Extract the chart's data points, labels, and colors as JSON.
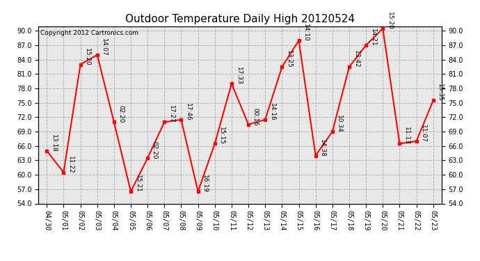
{
  "title": "Outdoor Temperature Daily High 20120524",
  "copyright": "Copyright 2012 Cartronics.com",
  "x_labels": [
    "04/30",
    "05/01",
    "05/02",
    "05/03",
    "05/04",
    "05/05",
    "05/06",
    "05/07",
    "05/08",
    "05/09",
    "05/10",
    "05/11",
    "05/12",
    "05/13",
    "05/14",
    "05/15",
    "05/16",
    "05/17",
    "05/18",
    "05/19",
    "05/20",
    "05/21",
    "05/22",
    "05/23"
  ],
  "y_values": [
    65.0,
    60.5,
    83.0,
    85.0,
    71.0,
    56.5,
    63.5,
    71.0,
    71.5,
    56.5,
    66.5,
    79.0,
    70.5,
    71.5,
    82.5,
    88.0,
    64.0,
    69.0,
    82.5,
    87.0,
    90.5,
    66.5,
    67.0,
    75.5
  ],
  "point_labels": [
    "13:18",
    "11:22",
    "15:20",
    "14:07",
    "02:20",
    "15:21",
    "02:20",
    "17:27",
    "17:46",
    "16:19",
    "15:15",
    "17:33",
    "00:16",
    "14:16",
    "13:25",
    "14:10",
    "14:38",
    "10:34",
    "13:42",
    "14:21",
    "15:20",
    "11:13",
    "11:07",
    "15:35"
  ],
  "ylim": [
    54.0,
    91.0
  ],
  "yticks": [
    54.0,
    57.0,
    60.0,
    63.0,
    66.0,
    69.0,
    72.0,
    75.0,
    78.0,
    81.0,
    84.0,
    87.0,
    90.0
  ],
  "line_color": "red",
  "marker_color": "red",
  "bg_color": "#ffffff",
  "plot_bg_color": "#e8e8e8",
  "grid_color": "#b0b0b0",
  "title_fontsize": 11,
  "label_fontsize": 6.5,
  "tick_fontsize": 7,
  "copyright_fontsize": 6.5
}
